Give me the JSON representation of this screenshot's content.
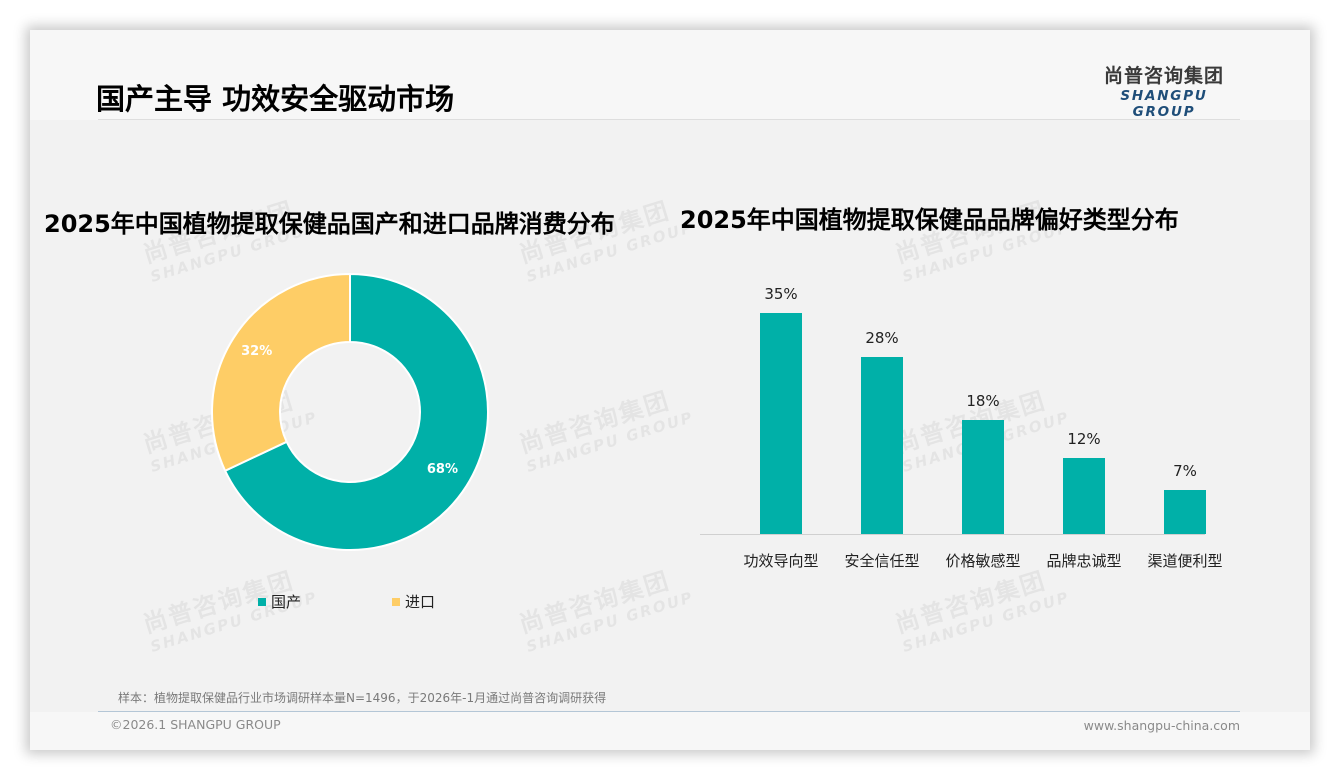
{
  "header": {
    "title": "国产主导 功效安全驱动市场",
    "logo_cn": "尚普咨询集团",
    "logo_en": "SHANGPU GROUP"
  },
  "watermark": {
    "cn": "尚普咨询集团",
    "en": "SHANGPU GROUP"
  },
  "colors": {
    "teal": "#00b0a8",
    "yellow": "#fecd66",
    "logo_blue": "#1f4e79"
  },
  "left_chart": {
    "title": "2025年中国植物提取保健品国产和进口品牌消费分布",
    "slices": [
      {
        "label": "国产",
        "value": 68,
        "display": "68%"
      },
      {
        "label": "进口",
        "value": 32,
        "display": "32%"
      }
    ],
    "legend": [
      "国产",
      "进口"
    ]
  },
  "right_chart": {
    "title": "2025年中国植物提取保健品品牌偏好类型分布",
    "bars": [
      {
        "category": "功效导向型",
        "value": 35,
        "display": "35%"
      },
      {
        "category": "安全信任型",
        "value": 28,
        "display": "28%"
      },
      {
        "category": "价格敏感型",
        "value": 18,
        "display": "18%"
      },
      {
        "category": "品牌忠诚型",
        "value": 12,
        "display": "12%"
      },
      {
        "category": "渠道便利型",
        "value": 7,
        "display": "7%"
      }
    ]
  },
  "chart_data": [
    {
      "type": "pie",
      "title": "2025年中国植物提取保健品国产和进口品牌消费分布",
      "categories": [
        "国产",
        "进口"
      ],
      "values": [
        68,
        32
      ],
      "unit": "%",
      "donut": true,
      "legend_position": "bottom",
      "colors": [
        "#00b0a8",
        "#fecd66"
      ]
    },
    {
      "type": "bar",
      "title": "2025年中国植物提取保健品品牌偏好类型分布",
      "categories": [
        "功效导向型",
        "安全信任型",
        "价格敏感型",
        "品牌忠诚型",
        "渠道便利型"
      ],
      "values": [
        35,
        28,
        18,
        12,
        7
      ],
      "unit": "%",
      "xlabel": "",
      "ylabel": "",
      "ylim": [
        0,
        40
      ],
      "grid": false,
      "data_labels": true,
      "colors": [
        "#00b0a8"
      ]
    }
  ],
  "footer": {
    "source": "样本：植物提取保健品行业市场调研样本量N=1496，于2026年-1月通过尚普咨询调研获得",
    "copyright": "©2026.1 SHANGPU GROUP",
    "website": "www.shangpu-china.com"
  }
}
